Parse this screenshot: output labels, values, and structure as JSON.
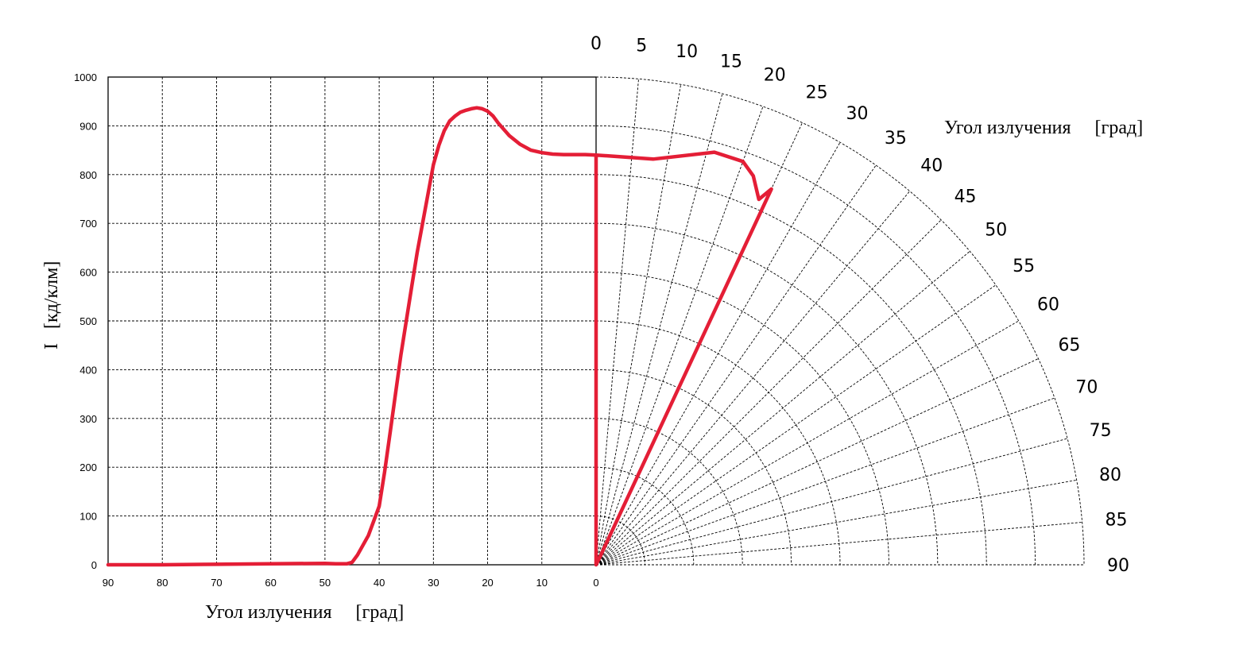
{
  "chart_data": [
    {
      "type": "line",
      "xlabel": "Угол излучения     [град]",
      "ylabel": "I   [кд/клм]",
      "xlim": [
        90,
        0
      ],
      "ylim": [
        0,
        1000
      ],
      "x_ticks": [
        "90",
        "80",
        "70",
        "60",
        "50",
        "40",
        "30",
        "20",
        "10",
        "0"
      ],
      "y_ticks": [
        "0",
        "100",
        "200",
        "300",
        "400",
        "500",
        "600",
        "700",
        "800",
        "900",
        "1000"
      ],
      "grid": true,
      "line_color": "#e41e36",
      "series": [
        {
          "x": [
            90,
            80,
            70,
            60,
            50,
            48,
            46,
            45,
            44,
            42,
            40,
            39,
            38,
            37,
            36,
            35,
            34,
            33,
            32,
            31,
            30,
            29,
            28,
            27,
            26,
            25,
            24,
            23,
            22,
            21,
            20,
            19,
            18,
            16,
            14,
            12,
            10,
            8,
            6,
            4,
            2,
            0
          ],
          "y": [
            0,
            0,
            1,
            2,
            3,
            2,
            2,
            5,
            20,
            60,
            120,
            190,
            270,
            350,
            430,
            500,
            570,
            640,
            700,
            760,
            820,
            860,
            890,
            910,
            920,
            928,
            932,
            935,
            937,
            935,
            930,
            920,
            905,
            880,
            862,
            850,
            845,
            842,
            841,
            841,
            841,
            840
          ]
        }
      ]
    },
    {
      "type": "polar",
      "title": "Угол излучения     [град]",
      "angle_ticks": [
        "0",
        "5",
        "10",
        "15",
        "20",
        "25",
        "30",
        "35",
        "40",
        "45",
        "50",
        "55",
        "60",
        "65",
        "70",
        "75",
        "80",
        "85",
        "90"
      ],
      "rlim": [
        0,
        1000
      ],
      "grid": true,
      "line_color": "#e41e36",
      "series": [
        {
          "angle": [
            0,
            8,
            16,
            20,
            22,
            24,
            25,
            26
          ],
          "r": [
            840,
            840,
            880,
            880,
            860,
            820,
            850,
            20
          ]
        }
      ]
    }
  ]
}
